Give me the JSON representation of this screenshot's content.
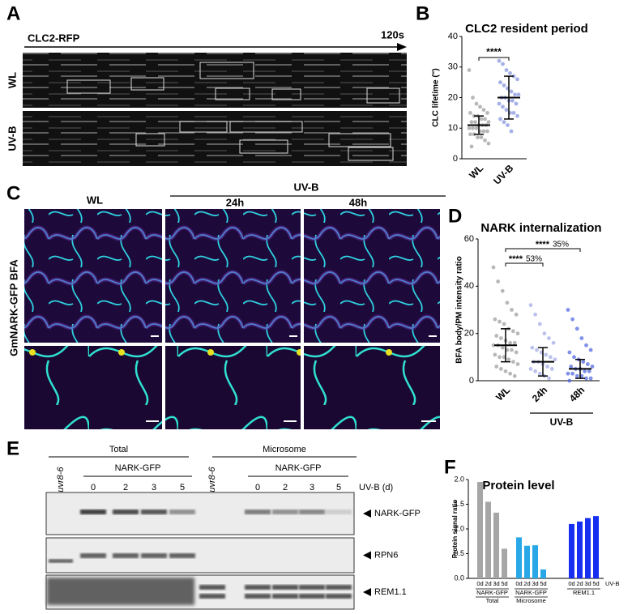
{
  "panel_labels": [
    "A",
    "B",
    "C",
    "D",
    "E",
    "F"
  ],
  "panel_a": {
    "title": "CLC2-RFP",
    "end_time": "120s",
    "rows": [
      "WL",
      "UV-B"
    ]
  },
  "panel_c": {
    "col_wl": "WL",
    "group": "UV-B",
    "col_24h": "24h",
    "col_48h": "48h",
    "row_label": "GmNARK-GFP BFA"
  },
  "panel_e": {
    "groups": [
      {
        "title": "Total",
        "control": "uvr8-6",
        "construct": "NARK-GFP",
        "lanes": [
          "0",
          "2",
          "3",
          "5"
        ]
      },
      {
        "title": "Microsome",
        "control": "uvr8-6",
        "construct": "NARK-GFP",
        "lanes": [
          "0",
          "2",
          "3",
          "5"
        ]
      }
    ],
    "unit": "UV-B (d)",
    "bands": [
      "NARK-GFP",
      "RPN6",
      "REM1.1"
    ]
  },
  "chart_data": [
    {
      "type": "scatter",
      "title": "CLC2 resident period",
      "ylabel": "CLC lifetime (\")",
      "ylim": [
        0,
        40
      ],
      "yticks": [
        0,
        10,
        20,
        30,
        40
      ],
      "significance": "****",
      "groups": [
        {
          "category": "WL",
          "color": "#9a9a9a",
          "mean": 11,
          "sd": 3,
          "values": [
            29,
            20,
            18,
            17,
            16,
            15,
            15,
            14,
            14,
            13,
            13,
            12,
            12,
            12,
            11,
            11,
            11,
            10,
            10,
            10,
            9,
            9,
            9,
            8,
            8,
            7,
            7,
            6,
            5,
            4
          ]
        },
        {
          "category": "UV-B",
          "color": "#7d8fdc",
          "mean": 20,
          "sd": 7,
          "values": [
            32,
            31,
            29,
            28,
            27,
            26,
            25,
            24,
            23,
            22,
            21,
            21,
            20,
            20,
            19,
            19,
            18,
            18,
            17,
            16,
            15,
            15,
            14,
            13,
            12,
            11,
            9
          ]
        }
      ]
    },
    {
      "type": "scatter",
      "title": "NARK internalization",
      "ylabel": "BFA body/PM intensity ratio",
      "ylim": [
        0,
        60
      ],
      "yticks": [
        0,
        20,
        40,
        60
      ],
      "group_label": "UV-B",
      "comparisons": [
        {
          "label": "****",
          "percent": "53%"
        },
        {
          "label": "****",
          "percent": "35%"
        }
      ],
      "groups": [
        {
          "category": "WL",
          "color": "#9a9a9a",
          "mean": 15,
          "sd": 7,
          "values": [
            48,
            42,
            38,
            33,
            30,
            28,
            26,
            25,
            24,
            22,
            21,
            20,
            19,
            18,
            17,
            16,
            16,
            15,
            15,
            14,
            13,
            13,
            12,
            11,
            10,
            10,
            9,
            8,
            7,
            6,
            5,
            4,
            3,
            2
          ]
        },
        {
          "category": "24h",
          "color": "#9fa8e6",
          "mean": 8,
          "sd": 6,
          "values": [
            32,
            28,
            24,
            20,
            18,
            16,
            14,
            13,
            12,
            11,
            10,
            9,
            8,
            8,
            7,
            6,
            5,
            5,
            4,
            3,
            2,
            1
          ]
        },
        {
          "category": "48h",
          "color": "#4a63e0",
          "mean": 5,
          "sd": 4,
          "values": [
            30,
            26,
            22,
            18,
            15,
            13,
            12,
            10,
            9,
            8,
            7,
            6,
            6,
            5,
            5,
            4,
            4,
            3,
            3,
            2,
            2,
            1,
            1,
            0
          ]
        }
      ]
    },
    {
      "type": "bar",
      "title": "Protein level",
      "ylabel": "Protein signal ratio",
      "unit": "UV-B",
      "ylim": [
        0,
        2
      ],
      "yticks": [
        {
          "value": 0,
          "label": "0.0"
        },
        {
          "value": 0.5,
          "label": "0.5"
        },
        {
          "value": 1,
          "label": "1.0"
        },
        {
          "value": 1.5,
          "label": "1.5"
        },
        {
          "value": 2,
          "label": "2.0"
        }
      ],
      "groups": [
        {
          "name": "NARK-GFP",
          "sublabel": "Total",
          "color": "#a6a6a6",
          "categories": [
            "0d",
            "2d",
            "3d",
            "5d"
          ],
          "values": [
            1.95,
            1.55,
            1.33,
            0.6
          ]
        },
        {
          "name": "NARK-GFP",
          "sublabel": "Microsome",
          "color": "#29a8e8",
          "categories": [
            "0d",
            "2d",
            "3d",
            "5d"
          ],
          "values": [
            0.83,
            0.66,
            0.67,
            0.18
          ]
        },
        {
          "name": "REM1.1",
          "color": "#1530f0",
          "categories": [
            "0d",
            "2d",
            "3d",
            "5d"
          ],
          "values": [
            1.1,
            1.15,
            1.22,
            1.26
          ]
        }
      ]
    }
  ]
}
